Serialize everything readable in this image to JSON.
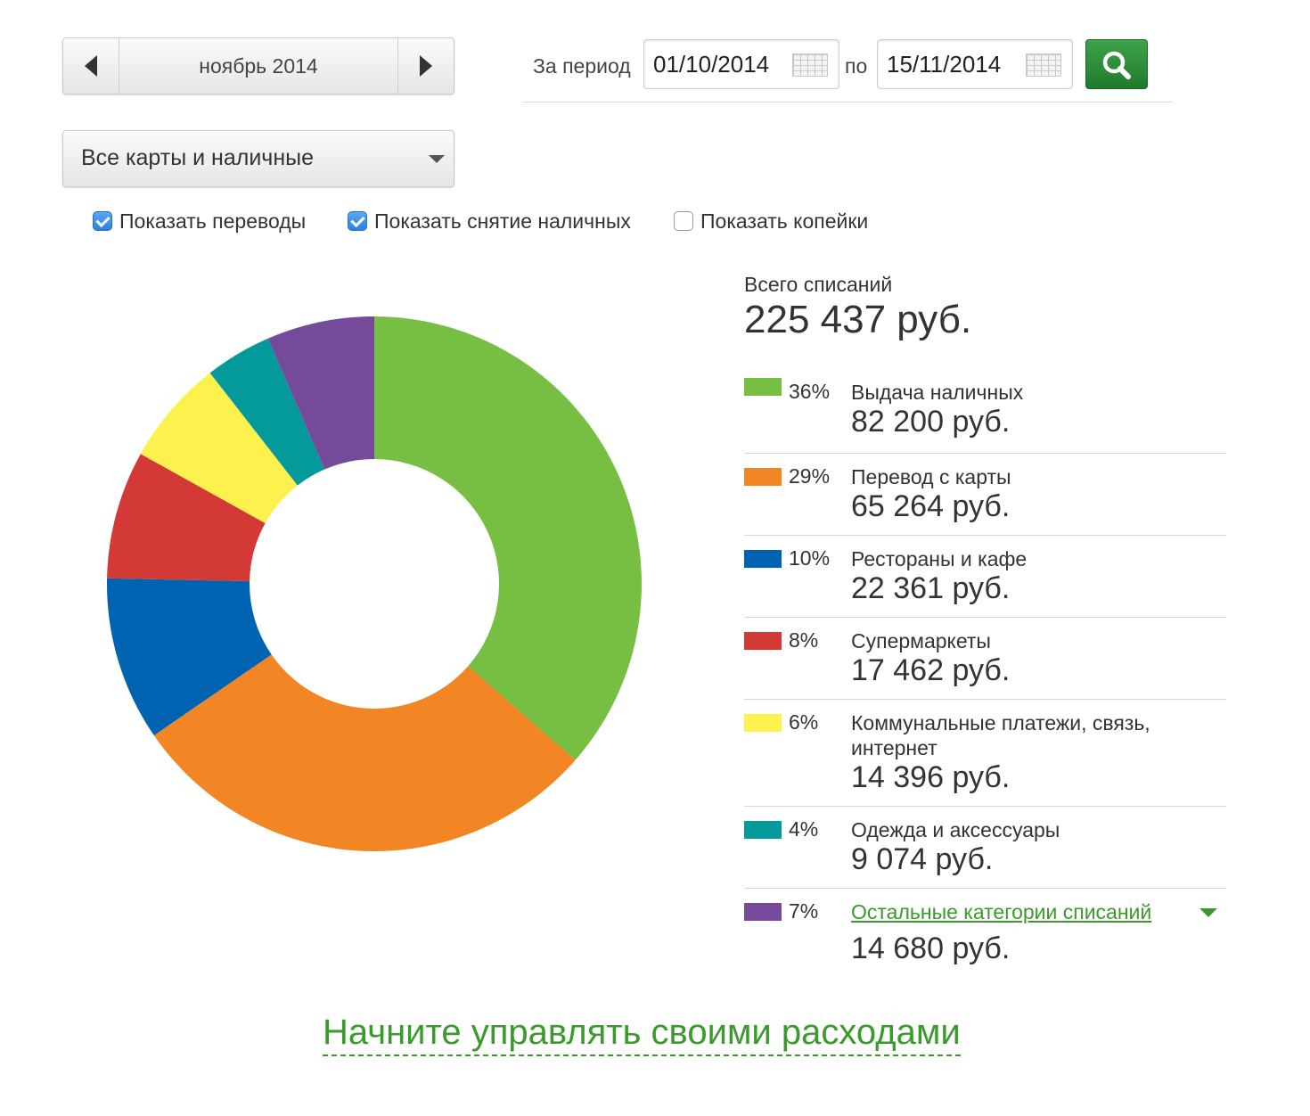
{
  "month_nav": {
    "label": "ноябрь 2014",
    "prev_icon": "arrow-left-icon",
    "next_icon": "arrow-right-icon"
  },
  "period": {
    "label": "За период",
    "to_label": "по",
    "from_date": "01/10/2014",
    "to_date": "15/11/2014",
    "search_icon": "search-icon",
    "search_button_color": "#2b8c36"
  },
  "card_select": {
    "value": "Все карты и наличные"
  },
  "checkboxes": [
    {
      "label": "Показать переводы",
      "checked": true
    },
    {
      "label": "Показать снятие наличных",
      "checked": true
    },
    {
      "label": "Показать копейки",
      "checked": false
    }
  ],
  "summary": {
    "total_label": "Всего списаний",
    "total_value": "225 437 руб."
  },
  "chart_data": {
    "type": "pie",
    "donut": true,
    "total": 225437,
    "slices": [
      {
        "label": "Выдача наличных",
        "percent": 36,
        "value": 82200,
        "amount": "82 200 руб.",
        "color": "#76bf43"
      },
      {
        "label": "Перевод с карты",
        "percent": 29,
        "value": 65264,
        "amount": "65 264 руб.",
        "color": "#f28524"
      },
      {
        "label": "Рестораны и кафе",
        "percent": 10,
        "value": 22361,
        "amount": "22 361 руб.",
        "color": "#0063b1"
      },
      {
        "label": "Супермаркеты",
        "percent": 8,
        "value": 17462,
        "amount": "17 462 руб.",
        "color": "#d33a36"
      },
      {
        "label": "Коммунальные платежи, связь, интернет",
        "percent": 6,
        "value": 14396,
        "amount": "14 396 руб.",
        "color": "#fdf24d"
      },
      {
        "label": "Одежда и аксессуары",
        "percent": 4,
        "value": 9074,
        "amount": "9 074 руб.",
        "color": "#04999a"
      },
      {
        "label": "Остальные категории списаний",
        "percent": 7,
        "value": 14680,
        "amount": "14 680 руб.",
        "color": "#764a9b",
        "is_link": true
      }
    ]
  },
  "legend_pct": [
    "36%",
    "29%",
    "10%",
    "8%",
    "6%",
    "4%",
    "7%"
  ],
  "footer": {
    "manage_link": "Начните управлять своими расходами"
  }
}
